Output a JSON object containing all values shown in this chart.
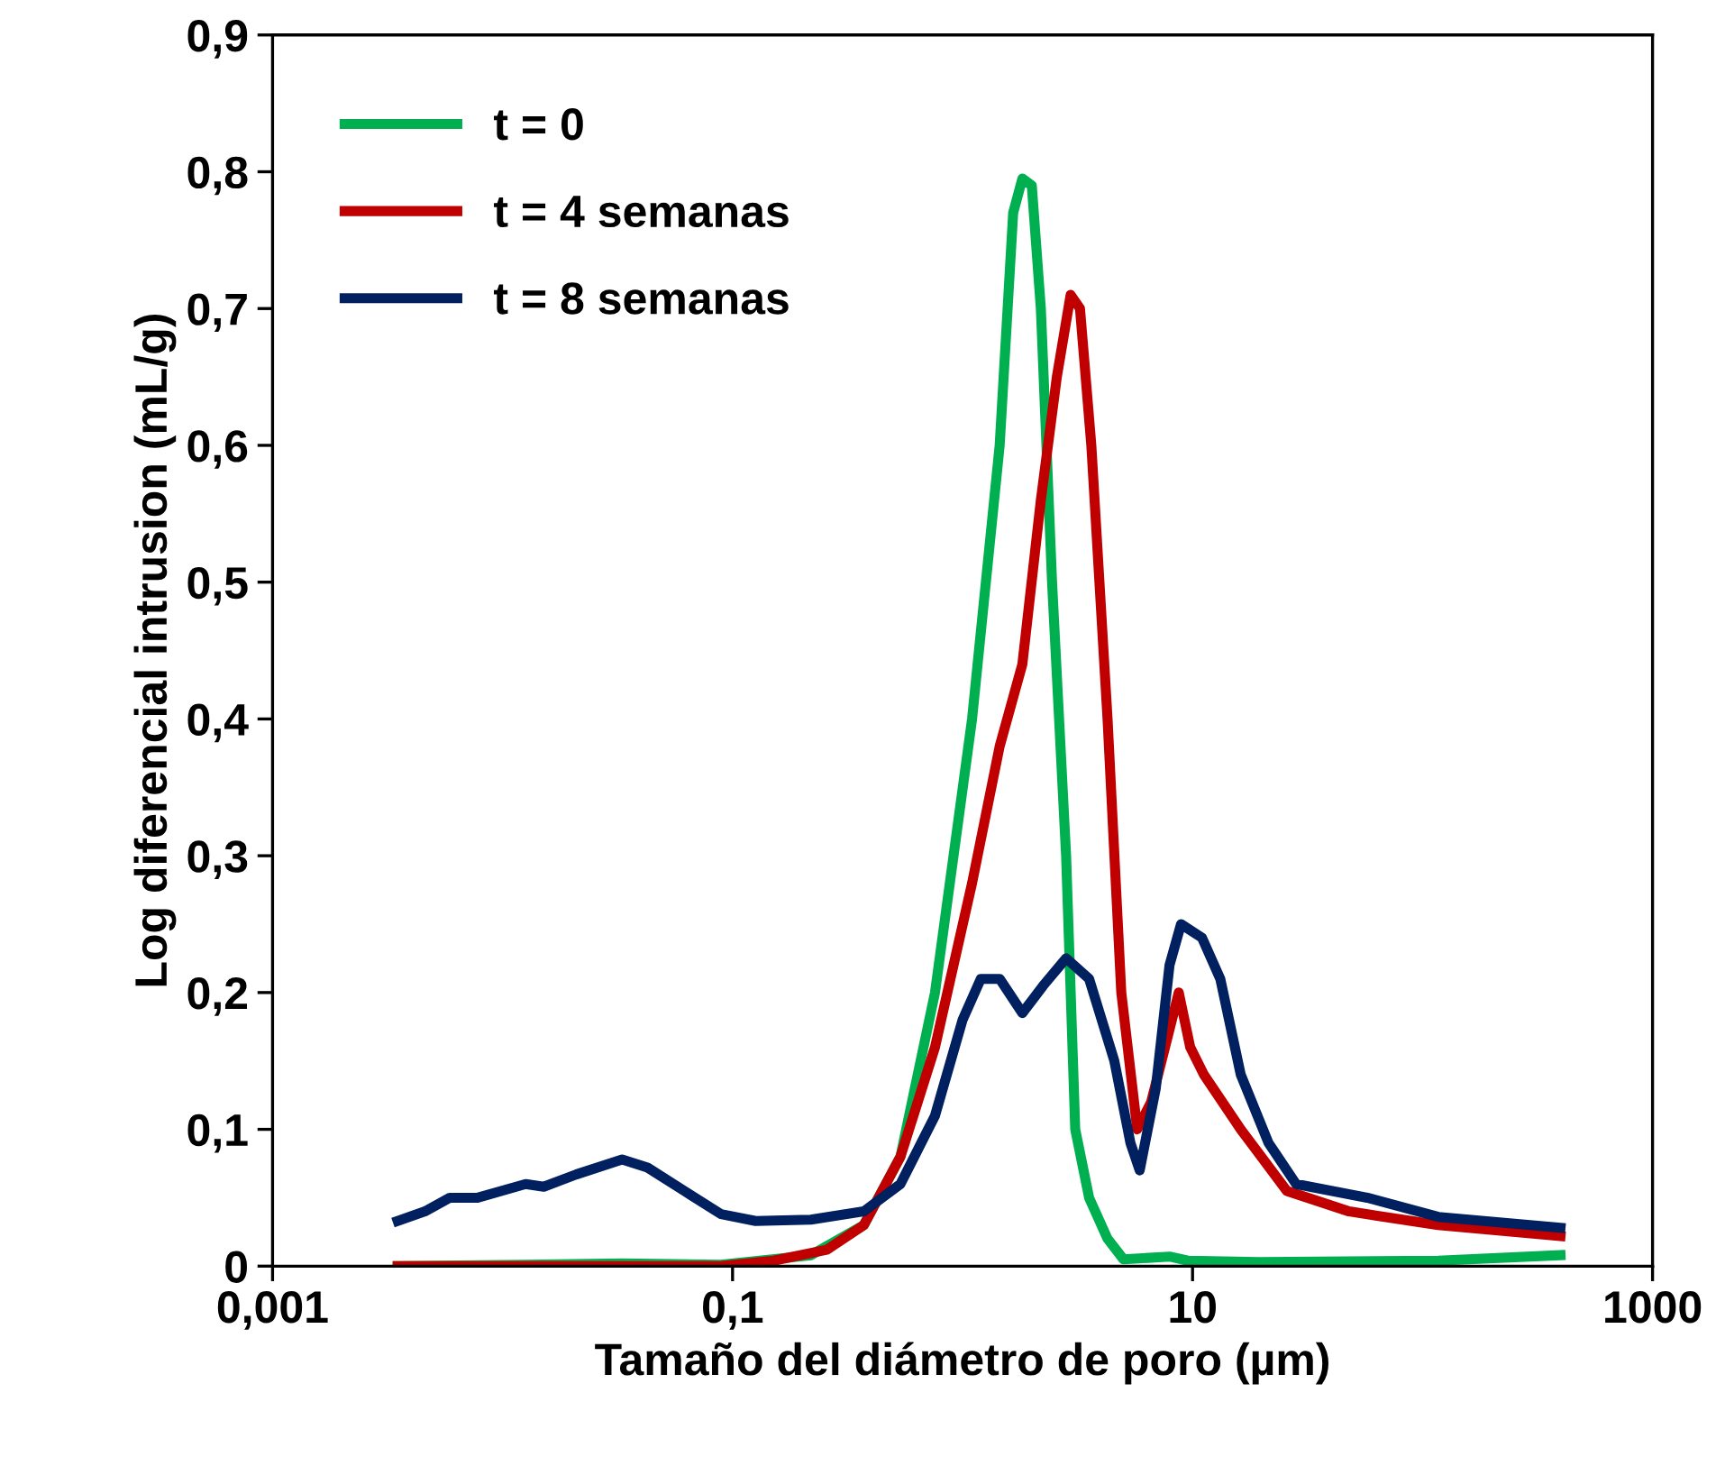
{
  "chart_data": {
    "type": "line",
    "xlabel": "Tamaño del diámetro de poro (µm)",
    "ylabel": "Log diferencial intrusion (mL/g)",
    "log": "x",
    "xlim": [
      0.001,
      1000
    ],
    "ylim": [
      0,
      0.9
    ],
    "xticks": [
      {
        "value": 0.001,
        "label": "0,001"
      },
      {
        "value": 0.1,
        "label": "0,1"
      },
      10,
      1000
    ],
    "yticks": [
      0,
      {
        "value": 0.1,
        "label": "0,1"
      },
      {
        "value": 0.2,
        "label": "0,2"
      },
      {
        "value": 0.3,
        "label": "0,3"
      },
      {
        "value": 0.4,
        "label": "0,4"
      },
      {
        "value": 0.5,
        "label": "0,5"
      },
      {
        "value": 0.6,
        "label": "0,6"
      },
      {
        "value": 0.7,
        "label": "0,7"
      },
      {
        "value": 0.8,
        "label": "0,8"
      },
      {
        "value": 0.9,
        "label": "0,9"
      }
    ],
    "grid": false,
    "legend": "top left",
    "marker": "none",
    "line_style": "solid",
    "series": [
      {
        "name": "t = 0",
        "color": "#00b050",
        "x": [
          0.0035,
          0.0126,
          0.0331,
          0.0891,
          0.219,
          0.372,
          0.537,
          0.759,
          1.1,
          1.45,
          1.66,
          1.82,
          2.0,
          2.19,
          2.45,
          2.82,
          3.09,
          3.55,
          4.27,
          5.01,
          7.94,
          9.55,
          19.5,
          117,
          398
        ],
        "values": [
          0,
          0.001,
          0.002,
          0.001,
          0.008,
          0.03,
          0.08,
          0.2,
          0.4,
          0.6,
          0.77,
          0.795,
          0.79,
          0.7,
          0.5,
          0.3,
          0.1,
          0.05,
          0.02,
          0.005,
          0.007,
          0.004,
          0.003,
          0.004,
          0.008
        ]
      },
      {
        "name": "t = 4 semanas",
        "color": "#c00000",
        "x": [
          0.0035,
          0.0891,
          0.151,
          0.257,
          0.372,
          0.537,
          0.759,
          1.1,
          1.45,
          1.82,
          2.19,
          2.57,
          2.95,
          3.24,
          3.63,
          4.27,
          4.9,
          5.75,
          6.61,
          7.59,
          8.71,
          9.77,
          11.2,
          16.2,
          25.7,
          47.9,
          117,
          398
        ],
        "values": [
          0,
          0,
          0.004,
          0.012,
          0.03,
          0.08,
          0.16,
          0.28,
          0.38,
          0.44,
          0.56,
          0.65,
          0.71,
          0.7,
          0.6,
          0.4,
          0.2,
          0.1,
          0.12,
          0.16,
          0.2,
          0.16,
          0.14,
          0.1,
          0.055,
          0.04,
          0.03,
          0.022
        ]
      },
      {
        "name": "t = 8 semanas",
        "color": "#002060",
        "x": [
          0.0035,
          0.0046,
          0.0059,
          0.0078,
          0.0126,
          0.0151,
          0.0209,
          0.0331,
          0.0427,
          0.0617,
          0.0891,
          0.126,
          0.219,
          0.372,
          0.537,
          0.759,
          1.0,
          1.2,
          1.45,
          1.82,
          2.24,
          2.82,
          3.55,
          4.57,
          5.37,
          5.89,
          6.92,
          7.94,
          8.91,
          11.0,
          13.2,
          16.2,
          21.4,
          28.2,
          57.5,
          117,
          398
        ],
        "values": [
          0.033,
          0.04,
          0.05,
          0.05,
          0.06,
          0.058,
          0.067,
          0.078,
          0.072,
          0.055,
          0.038,
          0.033,
          0.034,
          0.04,
          0.06,
          0.11,
          0.18,
          0.21,
          0.21,
          0.185,
          0.205,
          0.225,
          0.21,
          0.15,
          0.09,
          0.07,
          0.13,
          0.22,
          0.25,
          0.24,
          0.21,
          0.14,
          0.09,
          0.06,
          0.05,
          0.036,
          0.028
        ]
      }
    ]
  }
}
